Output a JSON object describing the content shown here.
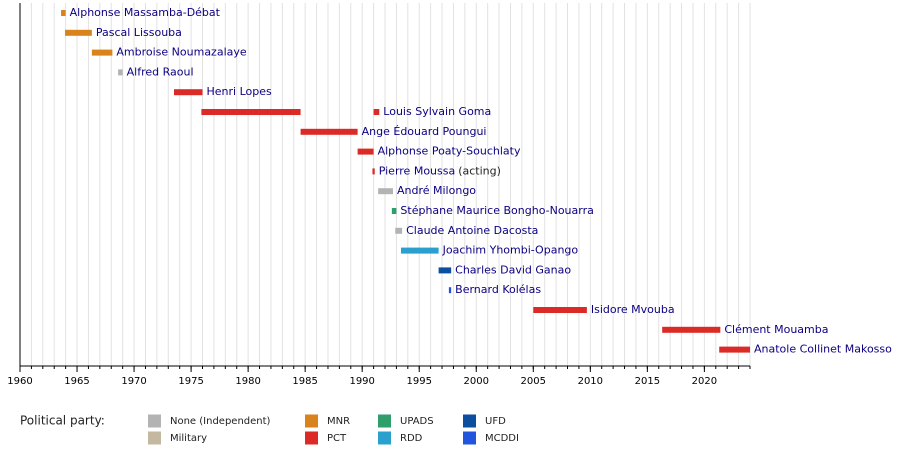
{
  "chart_data": {
    "type": "timeline",
    "xlim": [
      1960,
      2024
    ],
    "xticks": [
      1960,
      1965,
      1970,
      1975,
      1980,
      1985,
      1990,
      1995,
      2000,
      2005,
      2010,
      2015,
      2020
    ],
    "minor_xticks": [
      1960,
      1961,
      1962,
      1963,
      1964,
      1965,
      1966,
      1967,
      1968,
      1969,
      1970,
      1971,
      1972,
      1973,
      1974,
      1975,
      1976,
      1977,
      1978,
      1979,
      1980,
      1981,
      1982,
      1983,
      1984,
      1985,
      1986,
      1987,
      1988,
      1989,
      1990,
      1991,
      1992,
      1993,
      1994,
      1995,
      1996,
      1997,
      1998,
      1999,
      2000,
      2001,
      2002,
      2003,
      2004,
      2005,
      2006,
      2007,
      2008,
      2009,
      2010,
      2011,
      2012,
      2013,
      2014,
      2015,
      2016,
      2017,
      2018,
      2019,
      2020,
      2021,
      2022,
      2023,
      2024
    ],
    "grid": true,
    "legend_title": "Political party:",
    "parties": [
      {
        "name": "None (Independent)",
        "color": "#b3b3b3"
      },
      {
        "name": "Military",
        "color": "#c4b8a0"
      },
      {
        "name": "MNR",
        "color": "#d9831c"
      },
      {
        "name": "PCT",
        "color": "#dc2b26"
      },
      {
        "name": "UPADS",
        "color": "#2e9e6b"
      },
      {
        "name": "RDD",
        "color": "#2aa0cf"
      },
      {
        "name": "UFD",
        "color": "#0b4f9e"
      },
      {
        "name": "MCDDI",
        "color": "#2255dd"
      }
    ],
    "rows": [
      {
        "name": "Alphonse Massamba-Débat",
        "party": "MNR",
        "periods": [
          [
            1963.6,
            1964.0
          ]
        ]
      },
      {
        "name": "Pascal Lissouba",
        "party": "MNR",
        "periods": [
          [
            1963.95,
            1966.3
          ]
        ]
      },
      {
        "name": "Ambroise Noumazalaye",
        "party": "MNR",
        "periods": [
          [
            1966.3,
            1968.1
          ]
        ]
      },
      {
        "name": "Alfred Raoul",
        "party": "None (Independent)",
        "periods": [
          [
            1968.6,
            1969.0
          ]
        ]
      },
      {
        "name": "Henri Lopes",
        "party": "PCT",
        "periods": [
          [
            1973.5,
            1976.0
          ]
        ]
      },
      {
        "name": "Louis Sylvain Goma",
        "party": "PCT",
        "periods": [
          [
            1975.9,
            1984.6
          ],
          [
            1991.0,
            1991.5
          ]
        ]
      },
      {
        "name": "Ange Édouard Poungui",
        "party": "PCT",
        "periods": [
          [
            1984.6,
            1989.6
          ]
        ]
      },
      {
        "name": "Alphonse Poaty-Souchlaty",
        "party": "PCT",
        "periods": [
          [
            1989.6,
            1991.0
          ]
        ]
      },
      {
        "name": "Pierre Moussa",
        "note": "(acting)",
        "party": "PCT",
        "periods": [
          [
            1990.9,
            1991.1
          ]
        ]
      },
      {
        "name": "André Milongo",
        "party": "None (Independent)",
        "periods": [
          [
            1991.4,
            1992.7
          ]
        ]
      },
      {
        "name": "Stéphane Maurice Bongho-Nouarra",
        "party": "UPADS",
        "periods": [
          [
            1992.6,
            1993.0
          ]
        ]
      },
      {
        "name": "Claude Antoine Dacosta",
        "party": "None (Independent)",
        "periods": [
          [
            1992.9,
            1993.5
          ]
        ]
      },
      {
        "name": "Joachim Yhombi-Opango",
        "party": "RDD",
        "periods": [
          [
            1993.4,
            1996.7
          ]
        ]
      },
      {
        "name": "Charles David Ganao",
        "party": "UFD",
        "periods": [
          [
            1996.7,
            1997.8
          ]
        ]
      },
      {
        "name": "Bernard Kolélas",
        "party": "MCDDI",
        "periods": [
          [
            1997.6,
            1997.8
          ]
        ]
      },
      {
        "name": "Isidore Mvouba",
        "party": "PCT",
        "periods": [
          [
            2005.0,
            2009.7
          ]
        ]
      },
      {
        "name": "Clément Mouamba",
        "party": "PCT",
        "periods": [
          [
            2016.3,
            2021.4
          ]
        ]
      },
      {
        "name": "Anatole Collinet Makosso",
        "party": "PCT",
        "periods": [
          [
            2021.3,
            2024.0
          ]
        ]
      }
    ]
  }
}
